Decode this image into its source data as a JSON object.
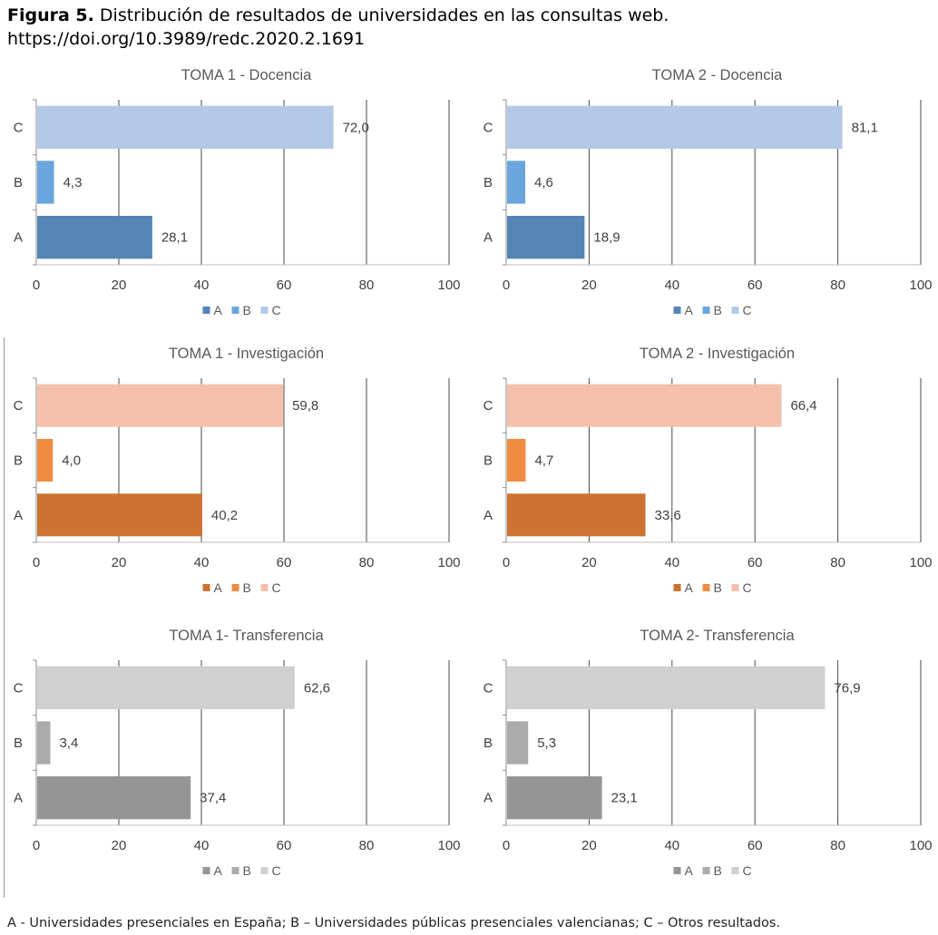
{
  "caption": {
    "label": "Figura 5.",
    "text": "Distribución de resultados de universidades en las consultas web.",
    "doi": "https://doi.org/10.3989/redc.2020.2.1691"
  },
  "footnote": "A - Universidades presenciales en España; B – Universidades públicas presenciales valencianas; C – Otros resultados.",
  "chart_data": [
    {
      "type": "bar",
      "orientation": "horizontal",
      "title": "TOMA 1 - Docencia",
      "categories": [
        "A",
        "B",
        "C"
      ],
      "values": [
        28.1,
        4.3,
        72.0
      ],
      "value_labels": [
        "28,1",
        "4,3",
        "72,0"
      ],
      "xlim": [
        0,
        100
      ],
      "xticks": [
        0,
        20,
        40,
        60,
        80,
        100
      ],
      "colors": [
        "#5585b5",
        "#6aa5dd",
        "#b4c9e7"
      ],
      "legend": [
        "A",
        "B",
        "C"
      ],
      "legend_position": "bottom",
      "grid": true
    },
    {
      "type": "bar",
      "orientation": "horizontal",
      "title": "TOMA 2 - Docencia",
      "categories": [
        "A",
        "B",
        "C"
      ],
      "values": [
        18.9,
        4.6,
        81.1
      ],
      "value_labels": [
        "18,9",
        "4,6",
        "81,1"
      ],
      "xlim": [
        0,
        100
      ],
      "xticks": [
        0,
        20,
        40,
        60,
        80,
        100
      ],
      "colors": [
        "#5585b5",
        "#6aa5dd",
        "#b4c9e7"
      ],
      "legend": [
        "A",
        "B",
        "C"
      ],
      "legend_position": "bottom",
      "grid": true
    },
    {
      "type": "bar",
      "orientation": "horizontal",
      "title": "TOMA 1 - Investigación",
      "categories": [
        "A",
        "B",
        "C"
      ],
      "values": [
        40.2,
        4.0,
        59.8
      ],
      "value_labels": [
        "40,2",
        "4,0",
        "59,8"
      ],
      "xlim": [
        0,
        100
      ],
      "xticks": [
        0,
        20,
        40,
        60,
        80,
        100
      ],
      "colors": [
        "#cc7232",
        "#ef8c41",
        "#f4c0ab"
      ],
      "legend": [
        "A",
        "B",
        "C"
      ],
      "legend_position": "bottom",
      "grid": true
    },
    {
      "type": "bar",
      "orientation": "horizontal",
      "title": "TOMA 2 - Investigación",
      "categories": [
        "A",
        "B",
        "C"
      ],
      "values": [
        33.6,
        4.7,
        66.4
      ],
      "value_labels": [
        "33,6",
        "4,7",
        "66,4"
      ],
      "xlim": [
        0,
        100
      ],
      "xticks": [
        0,
        20,
        40,
        60,
        80,
        100
      ],
      "colors": [
        "#cc7232",
        "#ef8c41",
        "#f4c0ab"
      ],
      "legend": [
        "A",
        "B",
        "C"
      ],
      "legend_position": "bottom",
      "grid": true
    },
    {
      "type": "bar",
      "orientation": "horizontal",
      "title": "TOMA 1- Transferencia",
      "categories": [
        "A",
        "B",
        "C"
      ],
      "values": [
        37.4,
        3.4,
        62.6
      ],
      "value_labels": [
        "37,4",
        "3,4",
        "62,6"
      ],
      "xlim": [
        0,
        100
      ],
      "xticks": [
        0,
        20,
        40,
        60,
        80,
        100
      ],
      "colors": [
        "#959595",
        "#ababab",
        "#d0d0d0"
      ],
      "legend": [
        "A",
        "B",
        "C"
      ],
      "legend_position": "bottom",
      "grid": true
    },
    {
      "type": "bar",
      "orientation": "horizontal",
      "title": "TOMA 2- Transferencia",
      "categories": [
        "A",
        "B",
        "C"
      ],
      "values": [
        23.1,
        5.3,
        76.9
      ],
      "value_labels": [
        "23,1",
        "5,3",
        "76,9"
      ],
      "xlim": [
        0,
        100
      ],
      "xticks": [
        0,
        20,
        40,
        60,
        80,
        100
      ],
      "colors": [
        "#959595",
        "#ababab",
        "#d0d0d0"
      ],
      "legend": [
        "A",
        "B",
        "C"
      ],
      "legend_position": "bottom",
      "grid": true
    }
  ]
}
